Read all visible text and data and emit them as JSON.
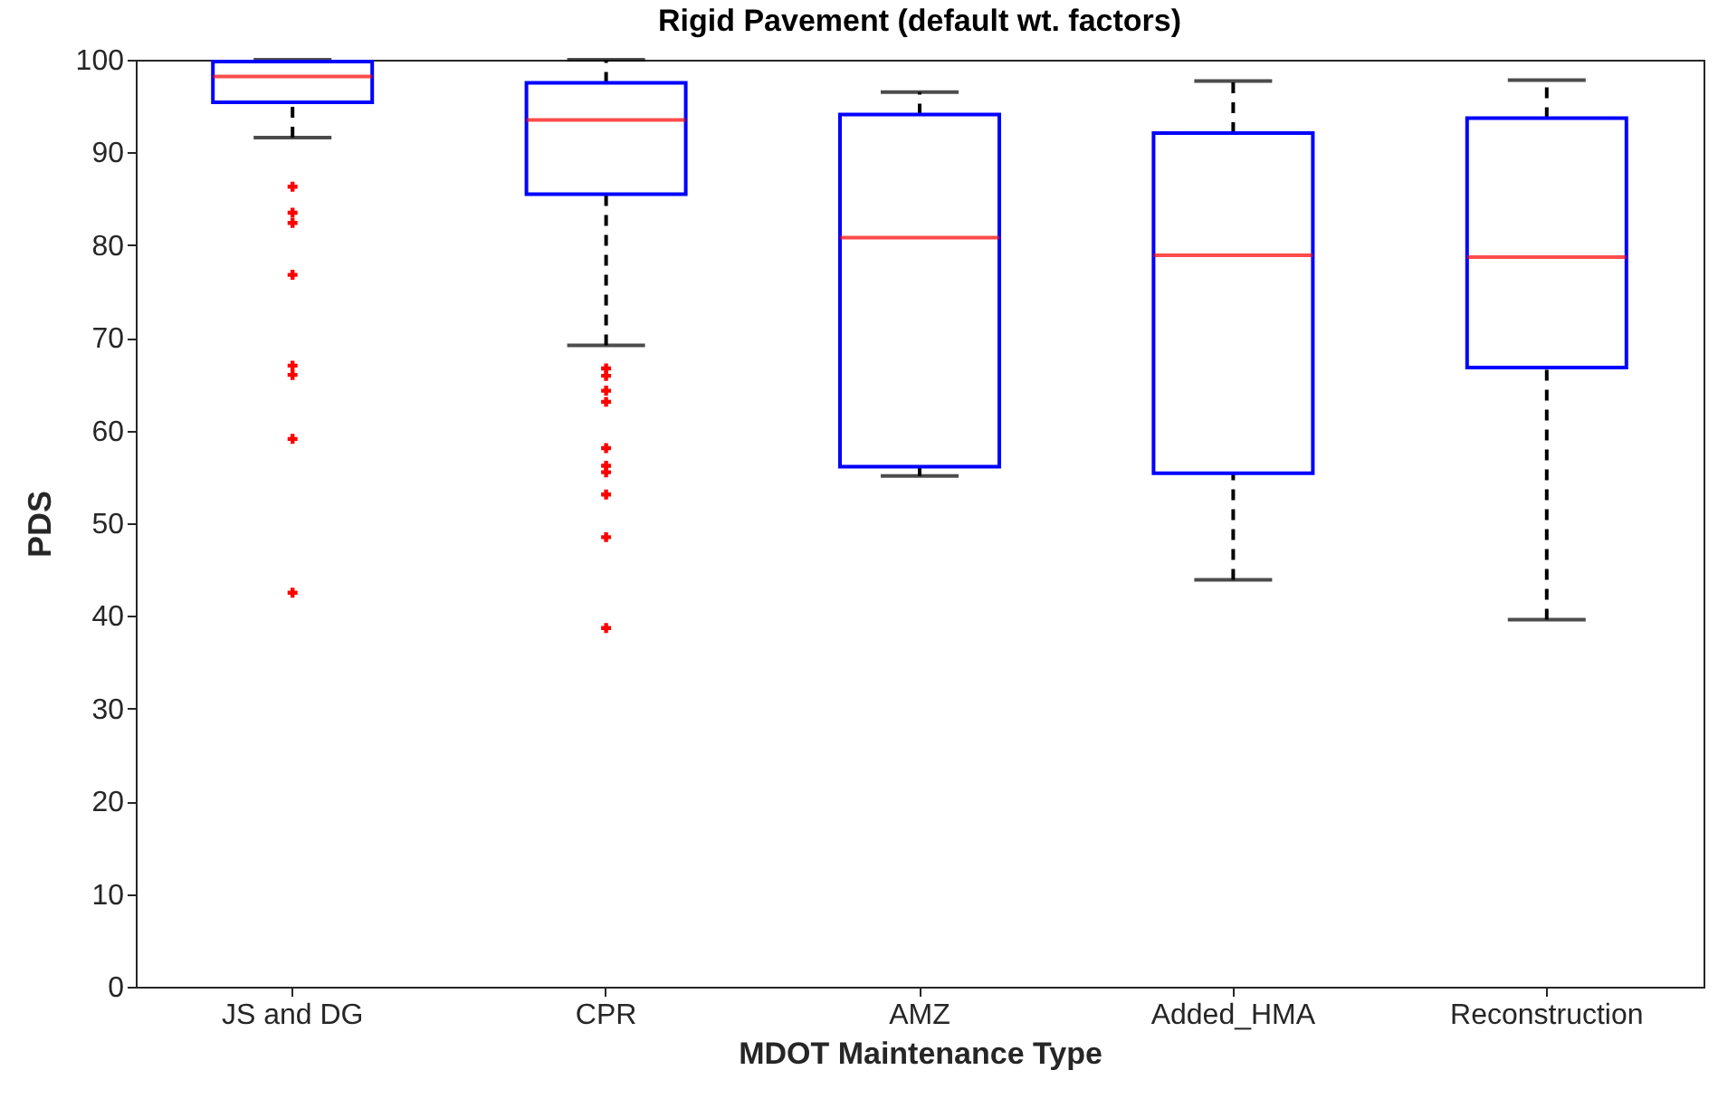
{
  "chart_data": {
    "type": "box",
    "title": "Rigid Pavement (default wt. factors)",
    "xlabel": "MDOT Maintenance Type",
    "ylabel": "PDS",
    "categories": [
      "JS and DG",
      "CPR",
      "AMZ",
      "Added_HMA",
      "Reconstruction"
    ],
    "boxes": [
      {
        "low": 91.6,
        "q1": 95.4,
        "median": 98.2,
        "q3": 99.8,
        "high": 100,
        "outliers": [
          86.3,
          83.5,
          82.4,
          76.8,
          67.0,
          66.0,
          59.1,
          42.5
        ]
      },
      {
        "low": 69.2,
        "q1": 85.5,
        "median": 93.5,
        "q3": 97.5,
        "high": 100,
        "outliers": [
          66.7,
          65.9,
          64.3,
          63.1,
          58.1,
          56.2,
          55.5,
          53.1,
          48.5,
          38.7
        ]
      },
      {
        "low": 55.1,
        "q1": 56.1,
        "median": 80.8,
        "q3": 94.1,
        "high": 96.5
      },
      {
        "low": 43.9,
        "q1": 55.4,
        "median": 78.9,
        "q3": 92.1,
        "high": 97.7
      },
      {
        "low": 39.6,
        "q1": 66.8,
        "median": 78.7,
        "q3": 93.7,
        "high": 97.8
      }
    ],
    "ylim": [
      0,
      100
    ],
    "yticks": [
      0,
      10,
      20,
      30,
      40,
      50,
      60,
      70,
      80,
      90,
      100
    ]
  }
}
